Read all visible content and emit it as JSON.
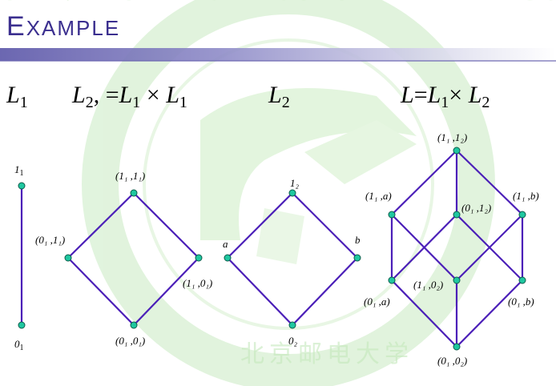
{
  "slide": {
    "title": "Example"
  },
  "headers": {
    "l1": {
      "main": "L",
      "sub": "1"
    },
    "l2prime": {
      "parts": [
        "L",
        "2",
        ", =",
        "L",
        "1",
        " × ",
        "L",
        "1"
      ]
    },
    "l2": {
      "main": "L",
      "sub": "2"
    },
    "product": {
      "parts": [
        "L",
        "=",
        "L",
        "1",
        "× ",
        "L",
        "2"
      ]
    }
  },
  "colors": {
    "edge": "#4b1fb8",
    "node_fill": "#1fc7a0",
    "node_stroke": "#0d5c4a",
    "watermark": "#b9e3b0"
  },
  "lattices": [
    {
      "name": "L1",
      "nodes": [
        {
          "id": "top",
          "label": [
            "1",
            "1"
          ]
        },
        {
          "id": "bot",
          "label": [
            "0",
            "1"
          ]
        }
      ],
      "edges": [
        [
          "top",
          "bot"
        ]
      ]
    },
    {
      "name": "L2'",
      "nodes": [
        {
          "id": "top",
          "label": "(1₁ ,1₁)"
        },
        {
          "id": "left",
          "label": "(0₁ ,1₁)"
        },
        {
          "id": "right",
          "label": "(1₁ ,0₁)"
        },
        {
          "id": "bot",
          "label": "(0₁ ,0₁)"
        }
      ],
      "edges": [
        [
          "top",
          "left"
        ],
        [
          "top",
          "right"
        ],
        [
          "left",
          "bot"
        ],
        [
          "right",
          "bot"
        ]
      ]
    },
    {
      "name": "L2",
      "nodes": [
        {
          "id": "top",
          "label": "1₂"
        },
        {
          "id": "left",
          "label": "a"
        },
        {
          "id": "right",
          "label": "b"
        },
        {
          "id": "bot",
          "label": "0₂"
        }
      ],
      "edges": [
        [
          "top",
          "left"
        ],
        [
          "top",
          "right"
        ],
        [
          "left",
          "bot"
        ],
        [
          "right",
          "bot"
        ]
      ]
    },
    {
      "name": "L",
      "nodes": [
        {
          "id": "t",
          "label": "(1₁ ,1₂)"
        },
        {
          "id": "l",
          "label": "(1₁ ,a)"
        },
        {
          "id": "m",
          "label": "(0₁ ,1₂)"
        },
        {
          "id": "r",
          "label": "(1₁ ,b)"
        },
        {
          "id": "bl",
          "label": "(0₁ ,a)"
        },
        {
          "id": "bm",
          "label": "(1₁ ,0₂)"
        },
        {
          "id": "br",
          "label": "(0₁ ,b)"
        },
        {
          "id": "b",
          "label": "(0₁ ,0₂)"
        }
      ],
      "edges": [
        [
          "t",
          "l"
        ],
        [
          "t",
          "m"
        ],
        [
          "t",
          "r"
        ],
        [
          "l",
          "bl"
        ],
        [
          "l",
          "bm"
        ],
        [
          "m",
          "bl"
        ],
        [
          "m",
          "br"
        ],
        [
          "r",
          "bm"
        ],
        [
          "r",
          "br"
        ],
        [
          "bl",
          "b"
        ],
        [
          "bm",
          "b"
        ],
        [
          "br",
          "b"
        ]
      ]
    }
  ],
  "watermark_text": [
    "UNIVERSITY OF POSTS AND TELECOMMUNICATIONS",
    "北京邮电大学"
  ]
}
